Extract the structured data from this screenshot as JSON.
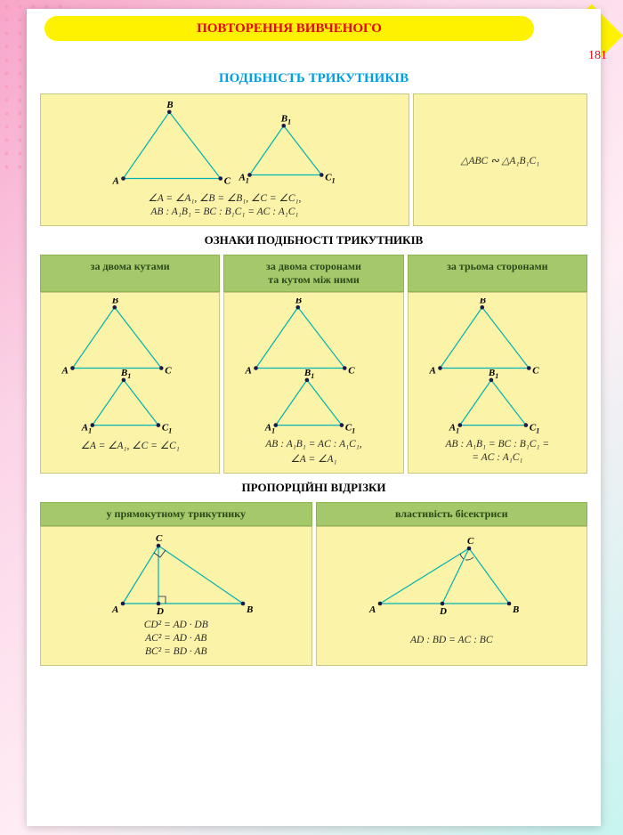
{
  "banner": "ПОВТОРЕННЯ ВИВЧЕНОГО",
  "page_number": "181",
  "title": "ПОДІБНІСТЬ ТРИКУТНИКІВ",
  "top_left_formula1": "∠A = ∠A₁, ∠B = ∠B₁, ∠C = ∠C₁,",
  "top_left_formula2": "AB : A₁B₁ = BC : B₁C₁ = AC : A₁C₁",
  "top_right_formula": "△ABC ∾ △A₁B₁C₁",
  "section1_title": "ОЗНАКИ ПОДІБНОСТІ ТРИКУТНИКІВ",
  "col1_header": "за двома кутами",
  "col2_header": "за двома сторонами\nта кутом між ними",
  "col3_header": "за трьома сторонами",
  "col1_formula": "∠A = ∠A₁, ∠C = ∠C₁",
  "col2_formula1": "AB : A₁B₁ = AC : A₁C₁,",
  "col2_formula2": "∠A = ∠A₁",
  "col3_formula1": "AB : A₁B₁ = BC : B₁C₁ =",
  "col3_formula2": "= AC : A₁C₁",
  "section2_title": "ПРОПОРЦІЙНІ ВІДРІЗКИ",
  "prop_col1_header": "у прямокутному трикутнику",
  "prop_col2_header": "властивість бісектриси",
  "prop_col1_f1": "CD² = AD · DB",
  "prop_col1_f2": "AC² = AD · AB",
  "prop_col1_f3": "BC² = BD · AB",
  "prop_col2_f": "AD : BD = AC : BC",
  "triangle": {
    "large": {
      "A": [
        10,
        70
      ],
      "B": [
        55,
        5
      ],
      "C": [
        105,
        70
      ]
    },
    "small": {
      "A": [
        10,
        55
      ],
      "B": [
        42,
        5
      ],
      "C": [
        80,
        55
      ]
    },
    "stroke": "#00b2b2",
    "label_font": "italic bold 11px Georgia"
  }
}
